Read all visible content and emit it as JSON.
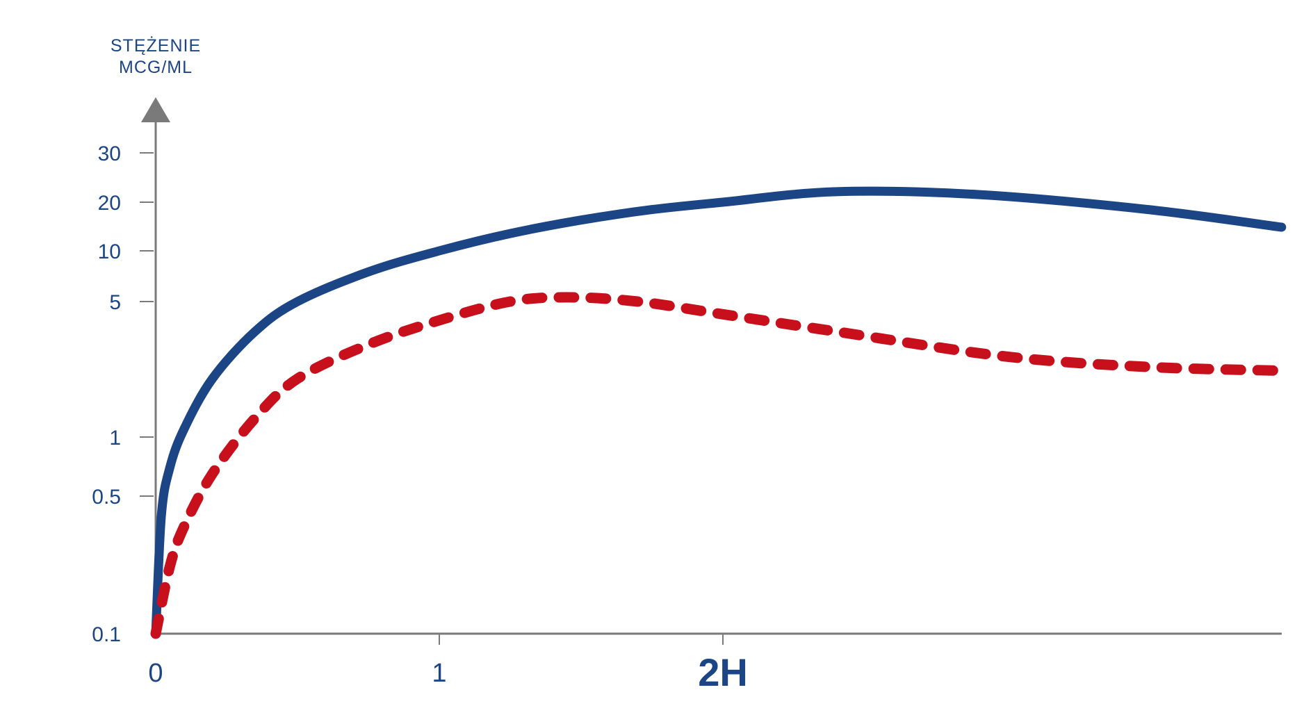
{
  "chart_data": {
    "type": "line",
    "ylabel": [
      "STĘŻENIE",
      "MCG/ML"
    ],
    "yticks": [
      {
        "value": 0.1,
        "label": "0.1"
      },
      {
        "value": 0.5,
        "label": "0.5"
      },
      {
        "value": 1,
        "label": "1"
      },
      {
        "value": 5,
        "label": "5"
      },
      {
        "value": 10,
        "label": "10"
      },
      {
        "value": 20,
        "label": "20"
      },
      {
        "value": 30,
        "label": "30"
      }
    ],
    "xticks": [
      {
        "value": 0,
        "label": "0",
        "major": false
      },
      {
        "value": 1,
        "label": "1",
        "major": false
      },
      {
        "value": 2,
        "label": "2H",
        "major": true
      }
    ],
    "xlim": [
      0,
      3.97
    ],
    "grid": false,
    "series": [
      {
        "style": "solid",
        "color": "#1b4585",
        "points": [
          [
            0.0,
            0.1
          ],
          [
            0.02,
            0.4
          ],
          [
            0.05,
            0.7
          ],
          [
            0.1,
            1.1
          ],
          [
            0.2,
            2.0
          ],
          [
            0.35,
            3.5
          ],
          [
            0.5,
            5.0
          ],
          [
            0.75,
            7.5
          ],
          [
            1.0,
            10.0
          ],
          [
            1.25,
            12.8
          ],
          [
            1.5,
            15.5
          ],
          [
            1.75,
            18.0
          ],
          [
            2.0,
            20.0
          ],
          [
            2.4,
            21.8
          ],
          [
            2.9,
            21.3
          ],
          [
            3.5,
            18.0
          ],
          [
            3.97,
            14.0
          ]
        ]
      },
      {
        "style": "dashed",
        "color": "#c8101d",
        "points": [
          [
            0.0,
            0.1
          ],
          [
            0.05,
            0.22
          ],
          [
            0.1,
            0.35
          ],
          [
            0.2,
            0.65
          ],
          [
            0.35,
            1.25
          ],
          [
            0.5,
            2.0
          ],
          [
            0.75,
            3.0
          ],
          [
            1.0,
            4.0
          ],
          [
            1.25,
            5.0
          ],
          [
            1.45,
            5.3
          ],
          [
            1.7,
            5.0
          ],
          [
            2.0,
            4.3
          ],
          [
            2.4,
            3.5
          ],
          [
            3.0,
            2.6
          ],
          [
            3.5,
            2.3
          ],
          [
            3.97,
            2.2
          ]
        ]
      }
    ]
  }
}
